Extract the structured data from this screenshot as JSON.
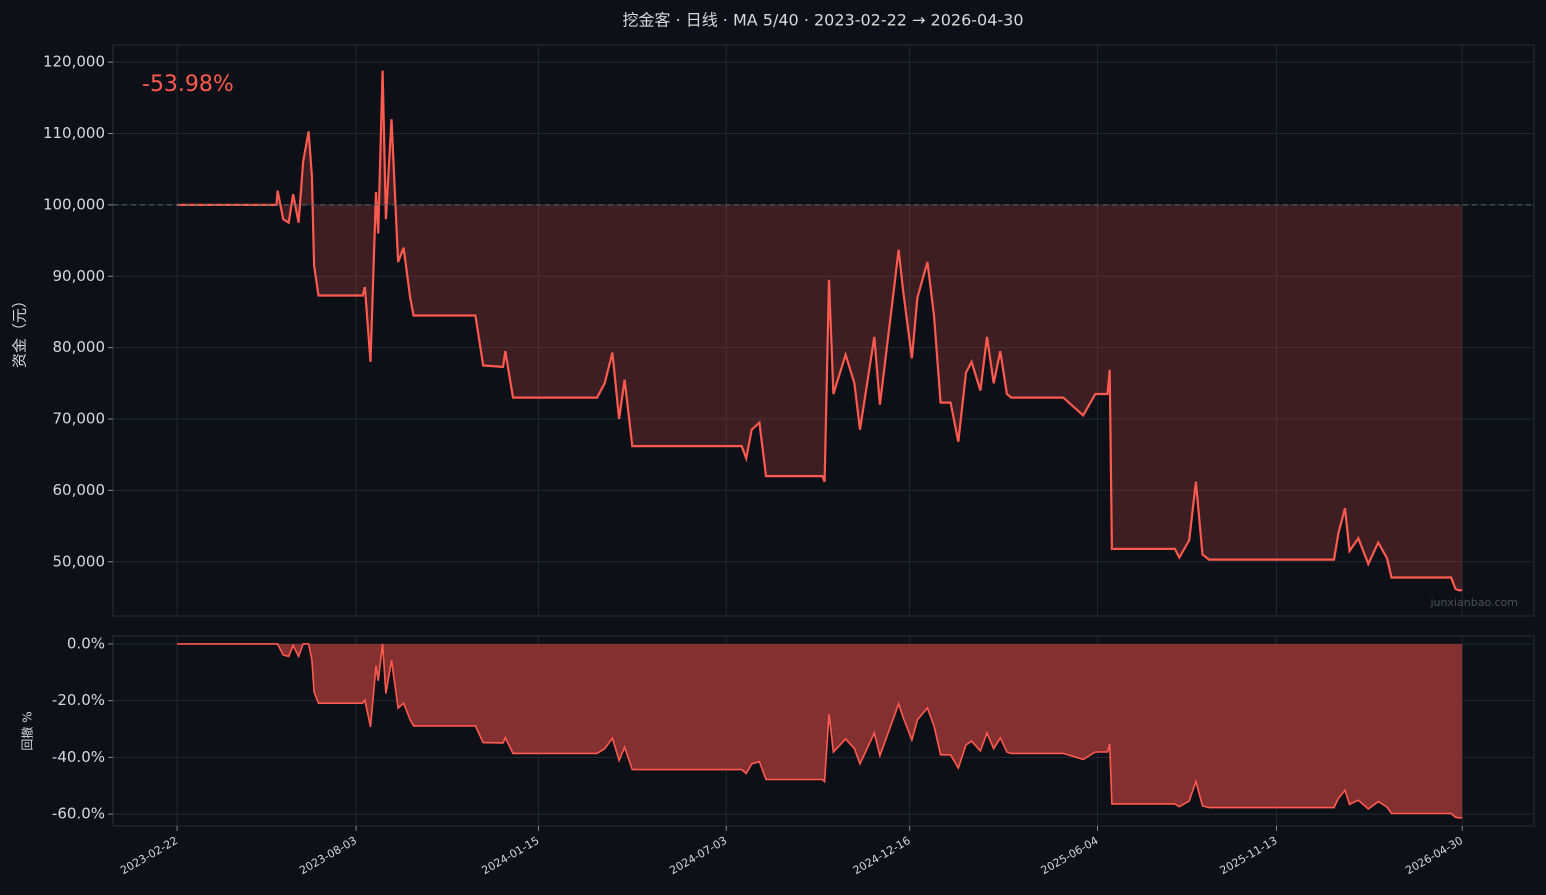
{
  "chart_data": [
    {
      "type": "line",
      "title": "挖金客 · 日线 · MA 5/40 · 2023-02-22 → 2026-04-30",
      "ylabel": "资金（元）",
      "annotation": "-53.98%",
      "watermark": "junxianbao.com",
      "baseline": 100000,
      "grid": true,
      "xlim": [
        "2022-12-26",
        "2026-07-04"
      ],
      "xticks": [
        "2023-02-22",
        "2023-08-03",
        "2024-01-15",
        "2024-07-03",
        "2024-12-16",
        "2025-06-04",
        "2025-11-13",
        "2026-04-30"
      ],
      "ylim": [
        42400,
        122400
      ],
      "yticks": [
        {
          "value": 50000,
          "label": "50,000"
        },
        {
          "value": 60000,
          "label": "60,000"
        },
        {
          "value": 70000,
          "label": "70,000"
        },
        {
          "value": 80000,
          "label": "80,000"
        },
        {
          "value": 90000,
          "label": "90,000"
        },
        {
          "value": 100000,
          "label": "100,000"
        },
        {
          "value": 110000,
          "label": "110,000"
        },
        {
          "value": 120000,
          "label": "120,000"
        }
      ],
      "x": [
        "2023-02-22",
        "2023-05-23",
        "2023-05-24",
        "2023-05-29",
        "2023-06-03",
        "2023-06-07",
        "2023-06-12",
        "2023-06-16",
        "2023-06-21",
        "2023-06-24",
        "2023-06-26",
        "2023-06-30",
        "2023-08-09",
        "2023-08-11",
        "2023-08-16",
        "2023-08-21",
        "2023-08-23",
        "2023-08-27",
        "2023-08-30",
        "2023-09-04",
        "2023-09-10",
        "2023-09-15",
        "2023-09-21",
        "2023-09-24",
        "2023-11-19",
        "2023-11-26",
        "2023-12-14",
        "2023-12-16",
        "2023-12-23",
        "2024-03-08",
        "2024-03-15",
        "2024-03-22",
        "2024-03-28",
        "2024-04-02",
        "2024-04-09",
        "2024-07-17",
        "2024-07-21",
        "2024-07-26",
        "2024-08-02",
        "2024-08-08",
        "2024-09-28",
        "2024-09-30",
        "2024-10-04",
        "2024-10-08",
        "2024-10-19",
        "2024-10-27",
        "2024-11-01",
        "2024-11-14",
        "2024-11-19",
        "2024-12-02",
        "2024-12-06",
        "2024-12-10",
        "2024-12-18",
        "2024-12-23",
        "2025-01-01",
        "2025-01-07",
        "2025-01-13",
        "2025-01-22",
        "2025-01-29",
        "2025-02-05",
        "2025-02-10",
        "2025-02-18",
        "2025-02-24",
        "2025-03-02",
        "2025-03-08",
        "2025-03-14",
        "2025-03-18",
        "2025-05-04",
        "2025-05-22",
        "2025-06-02",
        "2025-06-13",
        "2025-06-15",
        "2025-06-17",
        "2025-08-13",
        "2025-08-17",
        "2025-08-26",
        "2025-09-01",
        "2025-09-07",
        "2025-09-13",
        "2026-01-04",
        "2026-01-08",
        "2026-01-14",
        "2026-01-18",
        "2026-01-26",
        "2026-02-04",
        "2026-02-13",
        "2026-02-21",
        "2026-02-25",
        "2026-04-20",
        "2026-04-24",
        "2026-04-27",
        "2026-04-30"
      ],
      "series": [
        {
          "name": "资金",
          "color": "#ff5a4f",
          "values": [
            100000,
            100000,
            102000,
            98000,
            97500,
            101500,
            97500,
            106000,
            110300,
            104000,
            91500,
            87300,
            87300,
            88500,
            78000,
            101800,
            96000,
            118800,
            98000,
            112000,
            92000,
            94000,
            87000,
            84500,
            84500,
            77500,
            77300,
            79500,
            73000,
            73000,
            75000,
            79300,
            70000,
            75500,
            66200,
            66200,
            64500,
            68500,
            69500,
            62000,
            62000,
            61200,
            89500,
            73500,
            79000,
            75000,
            68500,
            81500,
            72000,
            88500,
            93700,
            88000,
            78500,
            87000,
            92000,
            84500,
            72300,
            72300,
            66800,
            76500,
            78000,
            74000,
            81500,
            75000,
            79500,
            73500,
            73000,
            73000,
            70500,
            73500,
            73500,
            76900,
            51800,
            51800,
            50600,
            53000,
            61200,
            51000,
            50300,
            50300,
            54000,
            57500,
            51500,
            53300,
            49700,
            52700,
            50500,
            47800,
            47800,
            46200,
            46000,
            46020
          ]
        }
      ]
    },
    {
      "type": "area",
      "ylabel": "回撤 %",
      "grid": true,
      "xlim": [
        "2022-12-26",
        "2026-07-04"
      ],
      "xticks": [
        "2023-02-22",
        "2023-08-03",
        "2024-01-15",
        "2024-07-03",
        "2024-12-16",
        "2025-06-04",
        "2025-11-13",
        "2026-04-30"
      ],
      "ylim": [
        -64.2,
        2.8
      ],
      "yticks": [
        {
          "value": -60,
          "label": "-60.0%"
        },
        {
          "value": -40,
          "label": "-40.0%"
        },
        {
          "value": -20,
          "label": "-20.0%"
        },
        {
          "value": 0,
          "label": "0.0%"
        }
      ],
      "x": [
        "2023-02-22",
        "2023-05-23",
        "2023-05-24",
        "2023-05-29",
        "2023-06-03",
        "2023-06-07",
        "2023-06-12",
        "2023-06-16",
        "2023-06-21",
        "2023-06-24",
        "2023-06-26",
        "2023-06-30",
        "2023-08-09",
        "2023-08-11",
        "2023-08-16",
        "2023-08-21",
        "2023-08-23",
        "2023-08-27",
        "2023-08-30",
        "2023-09-04",
        "2023-09-10",
        "2023-09-15",
        "2023-09-21",
        "2023-09-24",
        "2023-11-19",
        "2023-11-26",
        "2023-12-14",
        "2023-12-16",
        "2023-12-23",
        "2024-03-08",
        "2024-03-15",
        "2024-03-22",
        "2024-03-28",
        "2024-04-02",
        "2024-04-09",
        "2024-07-17",
        "2024-07-21",
        "2024-07-26",
        "2024-08-02",
        "2024-08-08",
        "2024-09-28",
        "2024-09-30",
        "2024-10-04",
        "2024-10-08",
        "2024-10-19",
        "2024-10-27",
        "2024-11-01",
        "2024-11-14",
        "2024-11-19",
        "2024-12-02",
        "2024-12-06",
        "2024-12-10",
        "2024-12-18",
        "2024-12-23",
        "2025-01-01",
        "2025-01-07",
        "2025-01-13",
        "2025-01-22",
        "2025-01-29",
        "2025-02-05",
        "2025-02-10",
        "2025-02-18",
        "2025-02-24",
        "2025-03-02",
        "2025-03-08",
        "2025-03-14",
        "2025-03-18",
        "2025-05-04",
        "2025-05-22",
        "2025-06-02",
        "2025-06-13",
        "2025-06-15",
        "2025-06-17",
        "2025-08-13",
        "2025-08-17",
        "2025-08-26",
        "2025-09-01",
        "2025-09-07",
        "2025-09-13",
        "2026-01-04",
        "2026-01-08",
        "2026-01-14",
        "2026-01-18",
        "2026-01-26",
        "2026-02-04",
        "2026-02-13",
        "2026-02-21",
        "2026-02-25",
        "2026-04-20",
        "2026-04-24",
        "2026-04-27",
        "2026-04-30"
      ],
      "series": [
        {
          "name": "回撤",
          "color": "#ff5a4f",
          "fill": "#9a3535",
          "values": [
            0,
            0,
            0,
            -3.9,
            -4.4,
            -0.5,
            -4.4,
            0,
            0,
            -5.7,
            -17.0,
            -20.9,
            -20.9,
            -19.8,
            -29.3,
            -7.7,
            -13.0,
            0,
            -17.5,
            -5.7,
            -22.6,
            -20.9,
            -26.8,
            -28.9,
            -28.9,
            -34.8,
            -34.9,
            -33.1,
            -38.6,
            -38.6,
            -36.9,
            -33.2,
            -41.1,
            -36.4,
            -44.3,
            -44.3,
            -45.7,
            -42.3,
            -41.5,
            -47.8,
            -47.8,
            -48.5,
            -24.7,
            -38.1,
            -33.5,
            -36.9,
            -42.3,
            -31.4,
            -39.4,
            -25.5,
            -21.1,
            -25.9,
            -33.9,
            -26.8,
            -22.6,
            -28.9,
            -39.1,
            -39.1,
            -43.8,
            -35.6,
            -34.3,
            -37.7,
            -31.4,
            -36.9,
            -33.1,
            -38.1,
            -38.6,
            -38.6,
            -40.7,
            -38.1,
            -38.1,
            -35.3,
            -56.4,
            -56.4,
            -57.4,
            -55.4,
            -48.5,
            -57.1,
            -57.7,
            -57.7,
            -54.5,
            -51.6,
            -56.6,
            -55.1,
            -58.2,
            -55.6,
            -57.5,
            -59.8,
            -59.8,
            -61.1,
            -61.3,
            -61.3
          ]
        }
      ]
    }
  ]
}
